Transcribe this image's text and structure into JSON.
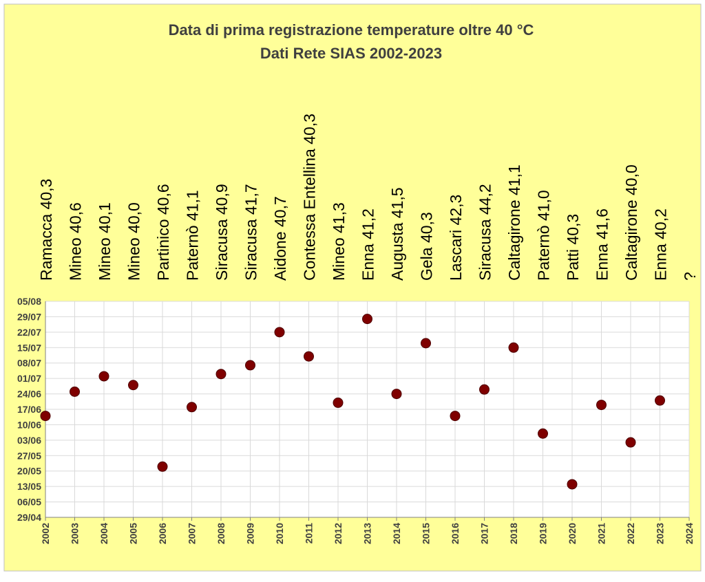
{
  "chart_data": {
    "type": "scatter",
    "title": "Data di prima registrazione temperature oltre 40 °C",
    "subtitle": "Dati Rete SIAS 2002-2023",
    "xlabel": "",
    "ylabel": "",
    "x_ticks": [
      "2002",
      "2003",
      "2004",
      "2005",
      "2006",
      "2007",
      "2008",
      "2009",
      "2010",
      "2011",
      "2012",
      "2013",
      "2014",
      "2015",
      "2016",
      "2017",
      "2018",
      "2019",
      "2020",
      "2021",
      "2022",
      "2023",
      "2024"
    ],
    "y_ticks": [
      "05/08",
      "29/07",
      "22/07",
      "15/07",
      "08/07",
      "01/07",
      "24/06",
      "17/06",
      "10/06",
      "03/06",
      "27/05",
      "20/05",
      "13/05",
      "06/05",
      "29/04"
    ],
    "xlim": [
      "2002",
      "2024"
    ],
    "ylim": [
      "29/04",
      "05/08"
    ],
    "grid": true,
    "legend": "none",
    "marker_color": "#7f0000",
    "background_color": "#ffff99",
    "plot_background_color": "#ffffff",
    "station_labels": [
      "Ramacca 40,3",
      "Mineo 40,6",
      "Mineo 40,1",
      "Mineo 40,0",
      "Partinico 40,6",
      "Paternò 41,1",
      "Siracusa 40,9",
      "Siracusa 41,7",
      "Aidone 40,7",
      "Contessa Entellina 40,3",
      "Mineo 41,3",
      "Enna 41,2",
      "Augusta 41,5",
      "Gela 40,3",
      "Lascari 42,3",
      "Siracusa 44,2",
      "Caltagirone 41,1",
      "Paternò 41,0",
      "Patti 40,3",
      "Enna 41,6",
      "Caltagirone 40,0",
      "Enna 40,2",
      "?"
    ],
    "points": [
      {
        "x": "2002",
        "y": "14/06"
      },
      {
        "x": "2003",
        "y": "25/06"
      },
      {
        "x": "2004",
        "y": "02/07"
      },
      {
        "x": "2005",
        "y": "28/06"
      },
      {
        "x": "2006",
        "y": "22/05"
      },
      {
        "x": "2007",
        "y": "18/06"
      },
      {
        "x": "2008",
        "y": "03/07"
      },
      {
        "x": "2009",
        "y": "07/07"
      },
      {
        "x": "2010",
        "y": "22/07"
      },
      {
        "x": "2011",
        "y": "11/07"
      },
      {
        "x": "2012",
        "y": "20/06"
      },
      {
        "x": "2013",
        "y": "28/07"
      },
      {
        "x": "2014",
        "y": "24/06"
      },
      {
        "x": "2015",
        "y": "17/07"
      },
      {
        "x": "2016",
        "y": "14/06"
      },
      {
        "x": "2017",
        "y": "26/06"
      },
      {
        "x": "2018",
        "y": "15/07"
      },
      {
        "x": "2019",
        "y": "06/06"
      },
      {
        "x": "2020",
        "y": "14/05"
      },
      {
        "x": "2021",
        "y": "19/06"
      },
      {
        "x": "2022",
        "y": "02/06"
      },
      {
        "x": "2023",
        "y": "21/06"
      }
    ]
  }
}
